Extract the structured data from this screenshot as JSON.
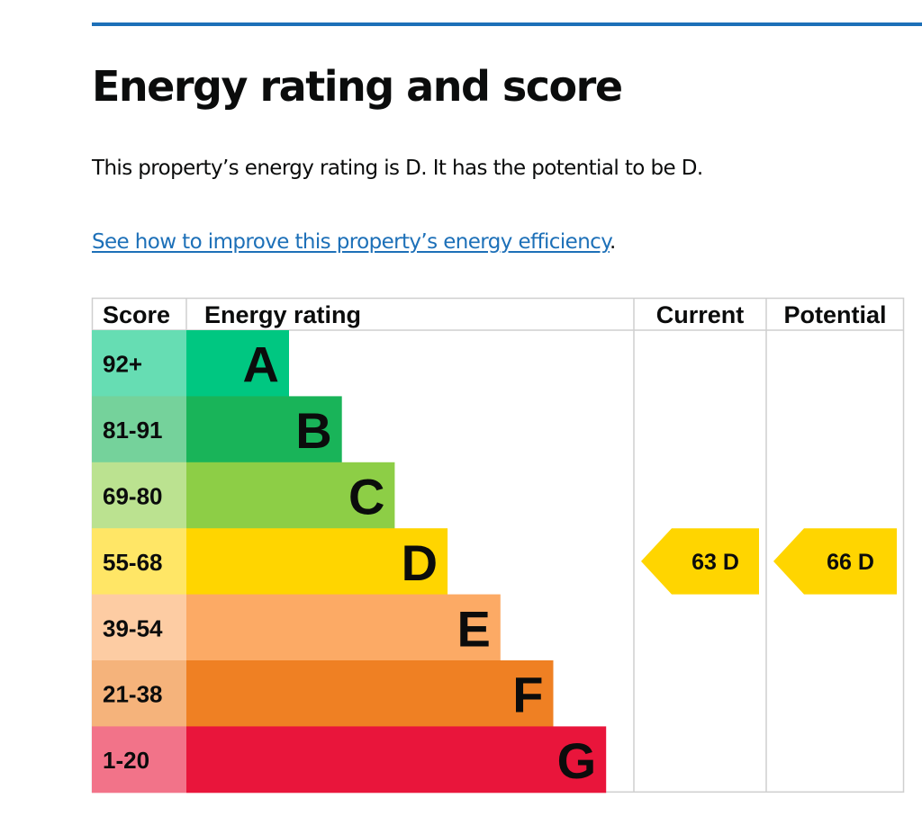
{
  "heading": "Energy rating and score",
  "summary": "This property’s energy rating is D. It has the potential to be D.",
  "improve_link": {
    "text": "See how to improve this property’s energy efficiency",
    "suffix": "."
  },
  "chart_data": {
    "type": "bar",
    "columns": {
      "score": "Score",
      "rating": "Energy rating",
      "current": "Current",
      "potential": "Potential"
    },
    "bands": [
      {
        "score": "92+",
        "letter": "A",
        "color": "#00c781",
        "score_bg": "#66ddb3"
      },
      {
        "score": "81-91",
        "letter": "B",
        "color": "#19b459",
        "score_bg": "#75d29b"
      },
      {
        "score": "69-80",
        "letter": "C",
        "color": "#8dce46",
        "score_bg": "#bbe290"
      },
      {
        "score": "55-68",
        "letter": "D",
        "color": "#ffd500",
        "score_bg": "#ffe666"
      },
      {
        "score": "39-54",
        "letter": "E",
        "color": "#fcaa65",
        "score_bg": "#fdcca3"
      },
      {
        "score": "21-38",
        "letter": "F",
        "color": "#ef8023",
        "score_bg": "#f5b37b"
      },
      {
        "score": "1-20",
        "letter": "G",
        "color": "#e9153b",
        "score_bg": "#f27389"
      }
    ],
    "current": {
      "score": 63,
      "letter": "D",
      "label": "63  D"
    },
    "potential": {
      "score": 66,
      "letter": "D",
      "label": "66  D"
    }
  }
}
